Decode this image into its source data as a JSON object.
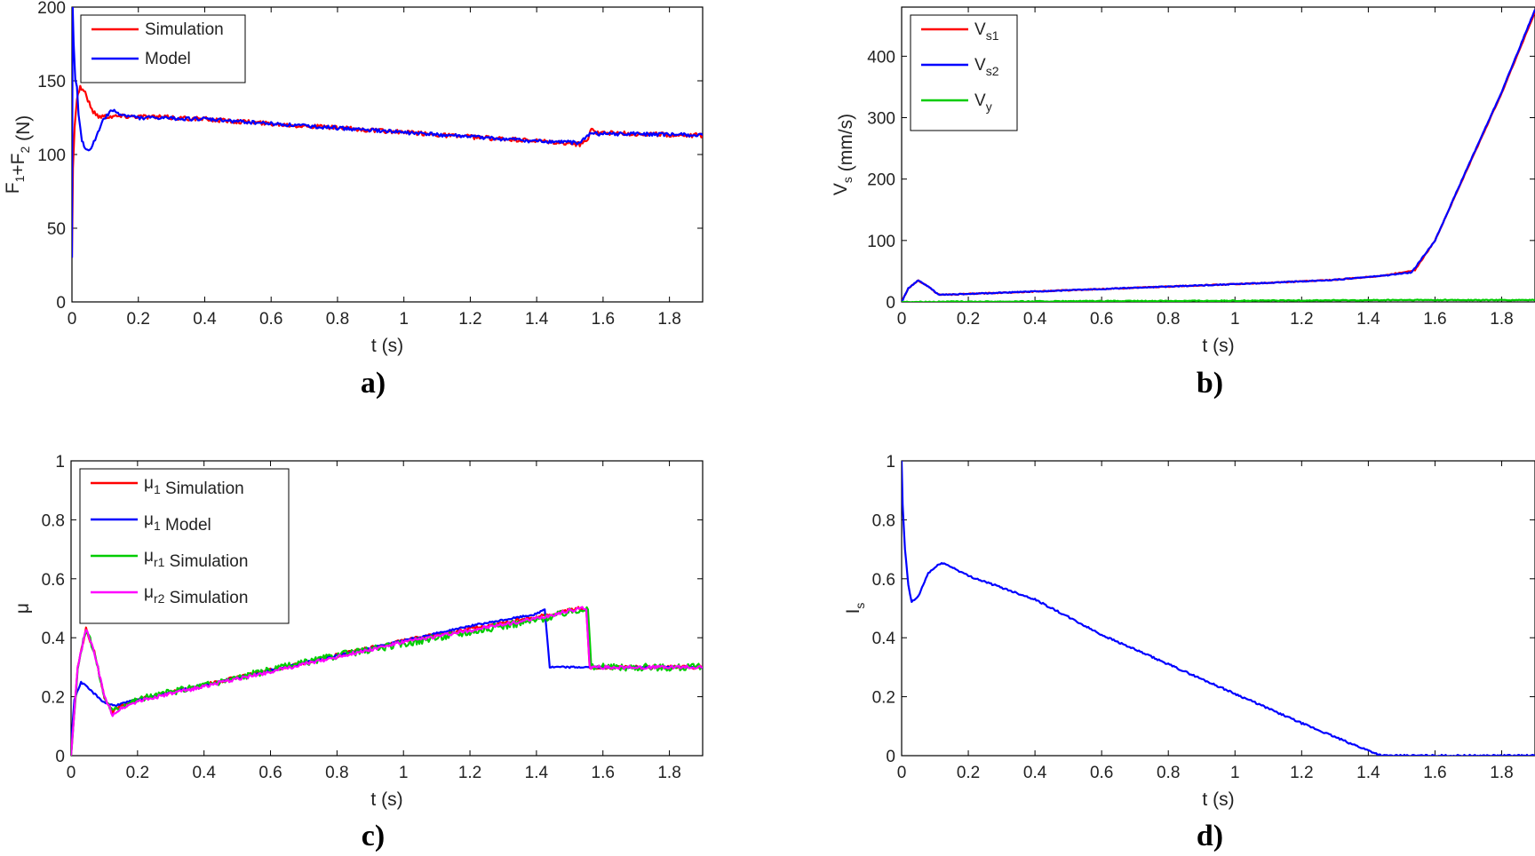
{
  "chart_data": [
    {
      "id": "a",
      "type": "line",
      "caption": "a)",
      "xlabel": "t (s)",
      "ylabel": {
        "parts": [
          [
            "F",
            ""
          ],
          [
            "1",
            "sub"
          ],
          [
            "+F",
            ""
          ],
          [
            "2",
            "sub"
          ],
          [
            " (N)",
            ""
          ]
        ]
      },
      "xlim": [
        0,
        1.9
      ],
      "ylim": [
        0,
        200
      ],
      "xticks": [
        0,
        0.2,
        0.4,
        0.6,
        0.8,
        1,
        1.2,
        1.4,
        1.6,
        1.8
      ],
      "yticks": [
        0,
        50,
        100,
        150,
        200
      ],
      "legend": {
        "position": "top-left",
        "entries": [
          {
            "color": "#ff0000",
            "parts": [
              [
                "Simulation",
                ""
              ]
            ]
          },
          {
            "color": "#0000ff",
            "parts": [
              [
                "Model",
                ""
              ]
            ]
          }
        ]
      },
      "series": [
        {
          "name": "Simulation",
          "color": "#ff0000",
          "noise": 1.5,
          "points": [
            [
              0,
              30
            ],
            [
              0.003,
              90
            ],
            [
              0.008,
              120
            ],
            [
              0.015,
              138
            ],
            [
              0.025,
              146
            ],
            [
              0.04,
              142
            ],
            [
              0.06,
              130
            ],
            [
              0.08,
              126
            ],
            [
              0.1,
              126
            ],
            [
              0.2,
              126
            ],
            [
              0.4,
              124
            ],
            [
              0.6,
              121
            ],
            [
              0.8,
              118
            ],
            [
              1.0,
              115
            ],
            [
              1.2,
              112
            ],
            [
              1.4,
              109
            ],
            [
              1.53,
              107
            ],
            [
              1.555,
              110
            ],
            [
              1.565,
              119
            ],
            [
              1.58,
              115
            ],
            [
              1.7,
              114
            ],
            [
              1.9,
              113
            ]
          ]
        },
        {
          "name": "Model",
          "color": "#0000ff",
          "noise": 1.2,
          "points": [
            [
              0,
              30
            ],
            [
              0.002,
              200
            ],
            [
              0.005,
              175
            ],
            [
              0.01,
              150
            ],
            [
              0.015,
              145
            ],
            [
              0.02,
              128
            ],
            [
              0.03,
              110
            ],
            [
              0.04,
              103
            ],
            [
              0.05,
              102
            ],
            [
              0.07,
              110
            ],
            [
              0.09,
              122
            ],
            [
              0.12,
              130
            ],
            [
              0.15,
              127
            ],
            [
              0.2,
              125
            ],
            [
              0.4,
              124
            ],
            [
              0.6,
              121
            ],
            [
              0.8,
              118
            ],
            [
              1.0,
              115
            ],
            [
              1.2,
              112
            ],
            [
              1.4,
              109
            ],
            [
              1.53,
              108
            ],
            [
              1.56,
              114
            ],
            [
              1.7,
              114
            ],
            [
              1.9,
              113
            ]
          ]
        }
      ]
    },
    {
      "id": "b",
      "type": "line",
      "caption": "b)",
      "xlabel": "t (s)",
      "ylabel": {
        "parts": [
          [
            "V",
            ""
          ],
          [
            "s",
            "sub"
          ],
          [
            " (mm/s)",
            ""
          ]
        ]
      },
      "xlim": [
        0,
        1.9
      ],
      "ylim": [
        0,
        480
      ],
      "xticks": [
        0,
        0.2,
        0.4,
        0.6,
        0.8,
        1,
        1.2,
        1.4,
        1.6,
        1.8
      ],
      "yticks": [
        0,
        100,
        200,
        300,
        400
      ],
      "legend": {
        "position": "top-left",
        "entries": [
          {
            "color": "#ff0000",
            "parts": [
              [
                "V",
                ""
              ],
              [
                "s1",
                "sub"
              ]
            ]
          },
          {
            "color": "#0000ff",
            "parts": [
              [
                "V",
                ""
              ],
              [
                "s2",
                "sub"
              ]
            ]
          },
          {
            "color": "#00cc00",
            "parts": [
              [
                "V",
                ""
              ],
              [
                "y",
                "sub"
              ]
            ]
          }
        ]
      },
      "series": [
        {
          "name": "Vs1",
          "color": "#ff0000",
          "noise": 0.8,
          "points": [
            [
              0,
              0
            ],
            [
              0.02,
              22
            ],
            [
              0.05,
              35
            ],
            [
              0.08,
              25
            ],
            [
              0.11,
              12
            ],
            [
              0.15,
              12
            ],
            [
              0.3,
              15
            ],
            [
              0.5,
              19
            ],
            [
              0.7,
              23
            ],
            [
              0.9,
              27
            ],
            [
              1.1,
              31
            ],
            [
              1.3,
              36
            ],
            [
              1.45,
              43
            ],
            [
              1.54,
              52
            ],
            [
              1.6,
              100
            ],
            [
              1.7,
              220
            ],
            [
              1.8,
              340
            ],
            [
              1.9,
              472
            ]
          ]
        },
        {
          "name": "Vs2",
          "color": "#0000ff",
          "noise": 0.8,
          "points": [
            [
              0,
              0
            ],
            [
              0.02,
              22
            ],
            [
              0.05,
              35
            ],
            [
              0.08,
              25
            ],
            [
              0.11,
              12
            ],
            [
              0.15,
              12
            ],
            [
              0.3,
              15
            ],
            [
              0.5,
              19
            ],
            [
              0.7,
              23
            ],
            [
              0.9,
              27
            ],
            [
              1.1,
              31
            ],
            [
              1.3,
              36
            ],
            [
              1.45,
              43
            ],
            [
              1.53,
              48
            ],
            [
              1.6,
              100
            ],
            [
              1.7,
              222
            ],
            [
              1.8,
              342
            ],
            [
              1.9,
              476
            ]
          ]
        },
        {
          "name": "Vy",
          "color": "#00cc00",
          "noise": 0.8,
          "points": [
            [
              0,
              0
            ],
            [
              0.5,
              1
            ],
            [
              1.0,
              2
            ],
            [
              1.5,
              3
            ],
            [
              1.9,
              3
            ]
          ]
        }
      ]
    },
    {
      "id": "c",
      "type": "line",
      "caption": "c)",
      "xlabel": "t (s)",
      "ylabel": {
        "parts": [
          [
            "μ",
            ""
          ]
        ]
      },
      "xlim": [
        0,
        1.9
      ],
      "ylim": [
        0,
        1
      ],
      "xticks": [
        0,
        0.2,
        0.4,
        0.6,
        0.8,
        1,
        1.2,
        1.4,
        1.6,
        1.8
      ],
      "yticks": [
        0,
        0.2,
        0.4,
        0.6,
        0.8,
        1
      ],
      "legend": {
        "position": "top-left",
        "entries": [
          {
            "color": "#ff0000",
            "parts": [
              [
                "μ",
                ""
              ],
              [
                "1",
                "sub"
              ],
              [
                " Simulation",
                ""
              ]
            ]
          },
          {
            "color": "#0000ff",
            "parts": [
              [
                "μ",
                ""
              ],
              [
                "1",
                "sub"
              ],
              [
                " Model",
                ""
              ]
            ]
          },
          {
            "color": "#00cc00",
            "parts": [
              [
                "μ",
                ""
              ],
              [
                "r1",
                "sub"
              ],
              [
                " Simulation",
                ""
              ]
            ]
          },
          {
            "color": "#ff00ff",
            "parts": [
              [
                "μ",
                ""
              ],
              [
                "r2",
                "sub"
              ],
              [
                " Simulation",
                ""
              ]
            ]
          }
        ]
      },
      "series": [
        {
          "name": "μ1 Simulation",
          "color": "#ff0000",
          "noise": 0.006,
          "points": [
            [
              0,
              0
            ],
            [
              0.02,
              0.3
            ],
            [
              0.045,
              0.43
            ],
            [
              0.07,
              0.35
            ],
            [
              0.1,
              0.2
            ],
            [
              0.125,
              0.145
            ],
            [
              0.15,
              0.17
            ],
            [
              0.2,
              0.19
            ],
            [
              0.4,
              0.24
            ],
            [
              0.6,
              0.29
            ],
            [
              0.8,
              0.34
            ],
            [
              1.0,
              0.39
            ],
            [
              1.2,
              0.43
            ],
            [
              1.4,
              0.47
            ],
            [
              1.53,
              0.5
            ],
            [
              1.55,
              0.495
            ],
            [
              1.56,
              0.3
            ],
            [
              1.9,
              0.3
            ]
          ]
        },
        {
          "name": "μ1 Model",
          "color": "#0000ff",
          "noise": 0.003,
          "points": [
            [
              0,
              0.04
            ],
            [
              0.01,
              0.19
            ],
            [
              0.03,
              0.25
            ],
            [
              0.06,
              0.22
            ],
            [
              0.1,
              0.18
            ],
            [
              0.13,
              0.17
            ],
            [
              0.2,
              0.19
            ],
            [
              0.4,
              0.24
            ],
            [
              0.6,
              0.29
            ],
            [
              0.8,
              0.34
            ],
            [
              1.0,
              0.39
            ],
            [
              1.2,
              0.44
            ],
            [
              1.4,
              0.48
            ],
            [
              1.425,
              0.497
            ],
            [
              1.44,
              0.3
            ],
            [
              1.9,
              0.3
            ]
          ]
        },
        {
          "name": "μr1 Simulation",
          "color": "#00cc00",
          "noise": 0.012,
          "points": [
            [
              0,
              0
            ],
            [
              0.02,
              0.3
            ],
            [
              0.045,
              0.43
            ],
            [
              0.07,
              0.35
            ],
            [
              0.1,
              0.2
            ],
            [
              0.125,
              0.15
            ],
            [
              0.15,
              0.17
            ],
            [
              0.2,
              0.19
            ],
            [
              0.4,
              0.24
            ],
            [
              0.6,
              0.29
            ],
            [
              0.8,
              0.34
            ],
            [
              1.0,
              0.38
            ],
            [
              1.2,
              0.42
            ],
            [
              1.4,
              0.46
            ],
            [
              1.54,
              0.5
            ],
            [
              1.555,
              0.495
            ],
            [
              1.565,
              0.3
            ],
            [
              1.9,
              0.3
            ]
          ]
        },
        {
          "name": "μr2 Simulation",
          "color": "#ff00ff",
          "noise": 0.006,
          "points": [
            [
              0,
              0
            ],
            [
              0.02,
              0.3
            ],
            [
              0.045,
              0.43
            ],
            [
              0.07,
              0.35
            ],
            [
              0.1,
              0.2
            ],
            [
              0.125,
              0.14
            ],
            [
              0.15,
              0.16
            ],
            [
              0.2,
              0.185
            ],
            [
              0.4,
              0.235
            ],
            [
              0.6,
              0.285
            ],
            [
              0.8,
              0.335
            ],
            [
              1.0,
              0.385
            ],
            [
              1.2,
              0.425
            ],
            [
              1.4,
              0.465
            ],
            [
              1.53,
              0.5
            ],
            [
              1.55,
              0.5
            ],
            [
              1.56,
              0.3
            ],
            [
              1.9,
              0.3
            ]
          ]
        }
      ]
    },
    {
      "id": "d",
      "type": "line",
      "caption": "d)",
      "xlabel": "t (s)",
      "ylabel": {
        "parts": [
          [
            "I",
            ""
          ],
          [
            "s",
            "sub"
          ]
        ]
      },
      "xlim": [
        0,
        1.9
      ],
      "ylim": [
        0,
        1
      ],
      "xticks": [
        0,
        0.2,
        0.4,
        0.6,
        0.8,
        1,
        1.2,
        1.4,
        1.6,
        1.8
      ],
      "yticks": [
        0,
        0.2,
        0.4,
        0.6,
        0.8,
        1
      ],
      "legend": null,
      "series": [
        {
          "name": "Is",
          "color": "#0000ff",
          "noise": 0.003,
          "points": [
            [
              0,
              1.0
            ],
            [
              0.003,
              0.85
            ],
            [
              0.01,
              0.7
            ],
            [
              0.02,
              0.58
            ],
            [
              0.03,
              0.52
            ],
            [
              0.05,
              0.54
            ],
            [
              0.08,
              0.62
            ],
            [
              0.12,
              0.655
            ],
            [
              0.15,
              0.64
            ],
            [
              0.2,
              0.61
            ],
            [
              0.4,
              0.53
            ],
            [
              0.6,
              0.41
            ],
            [
              0.8,
              0.31
            ],
            [
              1.0,
              0.21
            ],
            [
              1.2,
              0.11
            ],
            [
              1.35,
              0.04
            ],
            [
              1.44,
              0.0
            ],
            [
              1.9,
              0.0
            ]
          ]
        }
      ]
    }
  ]
}
